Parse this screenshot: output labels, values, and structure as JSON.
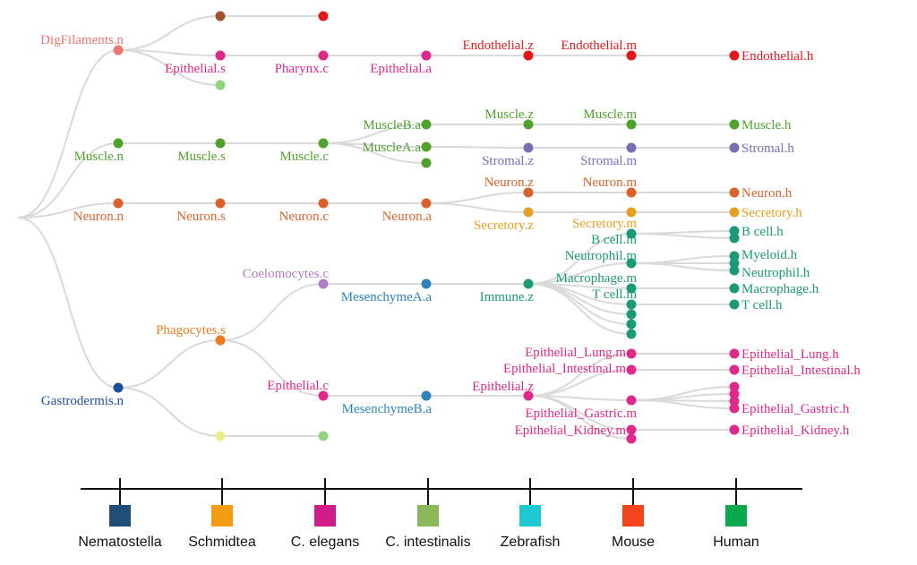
{
  "tree": {
    "link_color": "#d9d9d9",
    "nodes": [
      {
        "id": "n_dig",
        "label": "DigFilaments.n",
        "color": "#f07470",
        "species": 0,
        "parent": "root"
      },
      {
        "id": "s_brown",
        "label": "",
        "color": "#a0522d",
        "species": 1,
        "parent": "n_dig"
      },
      {
        "id": "c_red",
        "label": "",
        "color": "#e31a1c",
        "species": 2,
        "parent": "s_brown"
      },
      {
        "id": "s_epi",
        "label": "Epithelial.s",
        "color": "#e0288a",
        "species": 1,
        "parent": "n_dig"
      },
      {
        "id": "c_phar",
        "label": "Pharynx.c",
        "color": "#e0288a",
        "species": 2,
        "parent": "s_epi"
      },
      {
        "id": "a_epi",
        "label": "Epithelial.a",
        "color": "#e0288a",
        "species": 3,
        "parent": "c_phar"
      },
      {
        "id": "z_endo",
        "label": "Endothelial.z",
        "color": "#e31a1c",
        "species": 4,
        "parent": "a_epi"
      },
      {
        "id": "m_endo",
        "label": "Endothelial.m",
        "color": "#e31a1c",
        "species": 5,
        "parent": "z_endo"
      },
      {
        "id": "h_endo",
        "label": "Endothelial.h",
        "color": "#e31a1c",
        "species": 6,
        "parent": "m_endo"
      },
      {
        "id": "s_lg",
        "label": "",
        "color": "#92d47e",
        "species": 1,
        "parent": "n_dig"
      },
      {
        "id": "n_mus",
        "label": "Muscle.n",
        "color": "#4fa32c",
        "species": 0,
        "parent": "root"
      },
      {
        "id": "s_mus",
        "label": "Muscle.s",
        "color": "#4fa32c",
        "species": 1,
        "parent": "n_mus"
      },
      {
        "id": "c_mus",
        "label": "Muscle.c",
        "color": "#4fa32c",
        "species": 2,
        "parent": "s_mus"
      },
      {
        "id": "a_musB",
        "label": "MuscleB.a",
        "color": "#4fa32c",
        "species": 3,
        "parent": "c_mus"
      },
      {
        "id": "a_musA",
        "label": "MuscleA.a",
        "color": "#4fa32c",
        "species": 3,
        "parent": "c_mus"
      },
      {
        "id": "a_mus3",
        "label": "",
        "color": "#4fa32c",
        "species": 3,
        "parent": "c_mus"
      },
      {
        "id": "z_mus",
        "label": "Muscle.z",
        "color": "#4fa32c",
        "species": 4,
        "parent": "a_musB"
      },
      {
        "id": "m_mus",
        "label": "Muscle.m",
        "color": "#4fa32c",
        "species": 5,
        "parent": "z_mus"
      },
      {
        "id": "h_mus",
        "label": "Muscle.h",
        "color": "#4fa32c",
        "species": 6,
        "parent": "m_mus"
      },
      {
        "id": "z_str",
        "label": "Stromal.z",
        "color": "#7570b3",
        "species": 4,
        "parent": "a_musA"
      },
      {
        "id": "m_str",
        "label": "Stromal.m",
        "color": "#7570b3",
        "species": 5,
        "parent": "z_str"
      },
      {
        "id": "h_str",
        "label": "Stromal.h",
        "color": "#7570b3",
        "species": 6,
        "parent": "m_str"
      },
      {
        "id": "n_neu",
        "label": "Neuron.n",
        "color": "#d9622b",
        "species": 0,
        "parent": "root"
      },
      {
        "id": "s_neu",
        "label": "Neuron.s",
        "color": "#d9622b",
        "species": 1,
        "parent": "n_neu"
      },
      {
        "id": "c_neu",
        "label": "Neuron.c",
        "color": "#d9622b",
        "species": 2,
        "parent": "s_neu"
      },
      {
        "id": "a_neu",
        "label": "Neuron.a",
        "color": "#d9622b",
        "species": 3,
        "parent": "c_neu"
      },
      {
        "id": "z_neu",
        "label": "Neuron.z",
        "color": "#d9622b",
        "species": 4,
        "parent": "a_neu"
      },
      {
        "id": "m_neu",
        "label": "Neuron.m",
        "color": "#d9622b",
        "species": 5,
        "parent": "z_neu"
      },
      {
        "id": "h_neu",
        "label": "Neuron.h",
        "color": "#d9622b",
        "species": 6,
        "parent": "m_neu"
      },
      {
        "id": "z_sec",
        "label": "Secretory.z",
        "color": "#e6a020",
        "species": 4,
        "parent": "a_neu"
      },
      {
        "id": "m_sec",
        "label": "Secretory.m",
        "color": "#e6a020",
        "species": 5,
        "parent": "z_sec"
      },
      {
        "id": "h_sec",
        "label": "Secretory.h",
        "color": "#e6a020",
        "species": 6,
        "parent": "m_sec"
      },
      {
        "id": "n_gas",
        "label": "Gastrodermis.n",
        "color": "#1f4e99",
        "species": 0,
        "parent": "root"
      },
      {
        "id": "s_phag",
        "label": "Phagocytes.s",
        "color": "#f07a20",
        "species": 1,
        "parent": "n_gas"
      },
      {
        "id": "c_coel",
        "label": "Coelomocytes.c",
        "color": "#b07cc6",
        "species": 2,
        "parent": "s_phag"
      },
      {
        "id": "a_mesA",
        "label": "MesenchymeA.a",
        "color": "#2b83ba",
        "species": 3,
        "parent": "c_coel"
      },
      {
        "id": "z_imm",
        "label": "Immune.z",
        "color": "#1a9a78",
        "species": 4,
        "parent": "a_mesA"
      },
      {
        "id": "m_b",
        "label": "B cell.m",
        "color": "#1a9a78",
        "species": 5,
        "parent": "z_imm"
      },
      {
        "id": "h_b1",
        "label": "B cell.h",
        "color": "#1a9a78",
        "species": 6,
        "parent": "m_b"
      },
      {
        "id": "h_b2",
        "label": "",
        "color": "#1a9a78",
        "species": 6,
        "parent": "m_b"
      },
      {
        "id": "m_neut",
        "label": "Neutrophil.m",
        "color": "#1a9a78",
        "species": 5,
        "parent": "z_imm"
      },
      {
        "id": "h_mye",
        "label": "Myeloid.h",
        "color": "#1a9a78",
        "species": 6,
        "parent": "m_neut"
      },
      {
        "id": "h_mye2",
        "label": "",
        "color": "#1a9a78",
        "species": 6,
        "parent": "m_neut"
      },
      {
        "id": "h_neut",
        "label": "Neutrophil.h",
        "color": "#1a9a78",
        "species": 6,
        "parent": "m_neut"
      },
      {
        "id": "m_mac",
        "label": "Macrophage.m",
        "color": "#1a9a78",
        "species": 5,
        "parent": "z_imm"
      },
      {
        "id": "h_mac",
        "label": "Macrophage.h",
        "color": "#1a9a78",
        "species": 6,
        "parent": "m_mac"
      },
      {
        "id": "m_t",
        "label": "T cell.m",
        "color": "#1a9a78",
        "species": 5,
        "parent": "z_imm"
      },
      {
        "id": "h_t",
        "label": "T cell.h",
        "color": "#1a9a78",
        "species": 6,
        "parent": "m_t"
      },
      {
        "id": "m_x1",
        "label": "",
        "color": "#1a9a78",
        "species": 5,
        "parent": "z_imm"
      },
      {
        "id": "m_x2",
        "label": "",
        "color": "#1a9a78",
        "species": 5,
        "parent": "z_imm"
      },
      {
        "id": "m_x3",
        "label": "",
        "color": "#1a9a78",
        "species": 5,
        "parent": "z_imm"
      },
      {
        "id": "c_epi",
        "label": "Epithelial.c",
        "color": "#e0288a",
        "species": 2,
        "parent": "s_phag"
      },
      {
        "id": "a_mesB",
        "label": "MesenchymeB.a",
        "color": "#2b83ba",
        "species": 3,
        "parent": "c_epi"
      },
      {
        "id": "z_epi",
        "label": "Epithelial.z",
        "color": "#e0288a",
        "species": 4,
        "parent": "a_mesB"
      },
      {
        "id": "m_lung",
        "label": "Epithelial_Lung.m",
        "color": "#e0288a",
        "species": 5,
        "parent": "z_epi"
      },
      {
        "id": "h_lung",
        "label": "Epithelial_Lung.h",
        "color": "#e0288a",
        "species": 6,
        "parent": "m_lung"
      },
      {
        "id": "m_int",
        "label": "Epithelial_Intestinal.m",
        "color": "#e0288a",
        "species": 5,
        "parent": "z_epi"
      },
      {
        "id": "h_int",
        "label": "Epithelial_Intestinal.h",
        "color": "#e0288a",
        "species": 6,
        "parent": "m_int"
      },
      {
        "id": "m_gas",
        "label": "Epithelial_Gastric.m",
        "color": "#e0288a",
        "species": 5,
        "parent": "z_epi"
      },
      {
        "id": "h_g1",
        "label": "",
        "color": "#e0288a",
        "species": 6,
        "parent": "m_gas"
      },
      {
        "id": "h_g2",
        "label": "",
        "color": "#e0288a",
        "species": 6,
        "parent": "m_gas"
      },
      {
        "id": "h_g3",
        "label": "",
        "color": "#e0288a",
        "species": 6,
        "parent": "m_gas"
      },
      {
        "id": "h_g4",
        "label": "Epithelial_Gastric.h",
        "color": "#e0288a",
        "species": 6,
        "parent": "m_gas"
      },
      {
        "id": "m_kid",
        "label": "Epithelial_Kidney.m",
        "color": "#e0288a",
        "species": 5,
        "parent": "z_epi"
      },
      {
        "id": "m_kid2",
        "label": "",
        "color": "#e0288a",
        "species": 5,
        "parent": "z_epi"
      },
      {
        "id": "h_kid",
        "label": "Epithelial_Kidney.h",
        "color": "#e0288a",
        "species": 6,
        "parent": "m_kid"
      },
      {
        "id": "s_yel",
        "label": "",
        "color": "#eeee88",
        "species": 1,
        "parent": "n_gas"
      },
      {
        "id": "c_lg",
        "label": "",
        "color": "#92d47e",
        "species": 2,
        "parent": "s_yel"
      }
    ]
  },
  "species": [
    {
      "name": "Nematostella",
      "color": "#1f4e79"
    },
    {
      "name": "Schmidtea",
      "color": "#f39c12"
    },
    {
      "name": "C. elegans",
      "color": "#d01c8b"
    },
    {
      "name": "C. intestinalis",
      "color": "#8bb85a"
    },
    {
      "name": "Zebrafish",
      "color": "#1ec8d0"
    },
    {
      "name": "Mouse",
      "color": "#f4441c"
    },
    {
      "name": "Human",
      "color": "#0aa84f"
    }
  ]
}
